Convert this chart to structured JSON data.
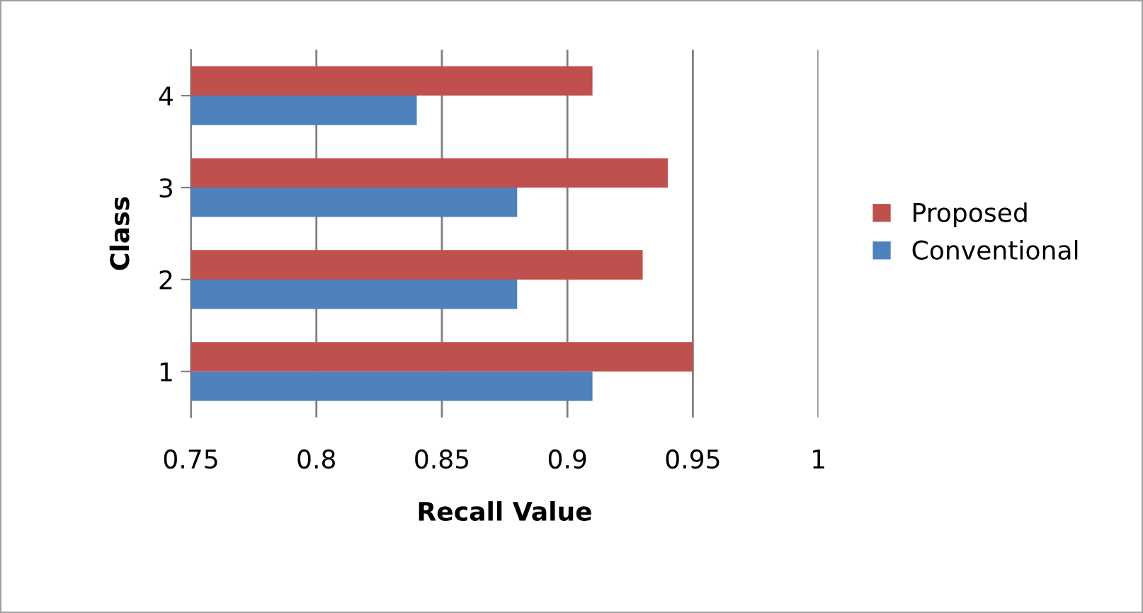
{
  "chart_data": {
    "type": "bar",
    "orientation": "horizontal",
    "xlabel": "Recall Value",
    "ylabel": "Class",
    "categories": [
      "4",
      "3",
      "2",
      "1"
    ],
    "series": [
      {
        "name": "Proposed",
        "color": "#c0504d",
        "values": [
          0.91,
          0.94,
          0.93,
          0.95
        ]
      },
      {
        "name": "Conventional",
        "color": "#4f81bd",
        "values": [
          0.84,
          0.88,
          0.88,
          0.91
        ]
      }
    ],
    "xlim": [
      0.75,
      1
    ],
    "xticks": [
      0.75,
      0.8,
      0.85,
      0.9,
      0.95,
      1
    ],
    "grid": "x",
    "legend": "right"
  }
}
